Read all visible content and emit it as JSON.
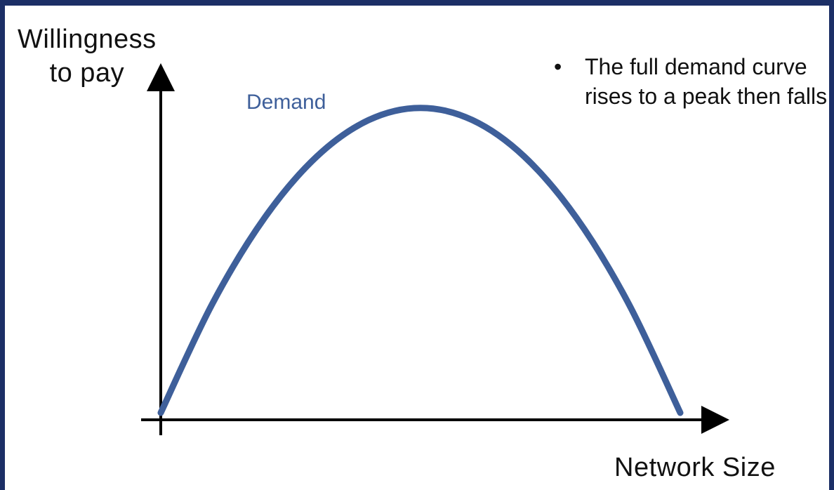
{
  "colors": {
    "frame": "#1c2f66",
    "curve": "#3e5f9a",
    "axis": "#000000",
    "text": "#111111"
  },
  "chart_data": {
    "type": "line",
    "title": "",
    "xlabel": "Network Size",
    "ylabel_lines": [
      "Willingness",
      "to pay"
    ],
    "xlim": [
      0,
      1
    ],
    "ylim": [
      0,
      1.05
    ],
    "grid": false,
    "axis_ticks": false,
    "series": [
      {
        "name": "Demand",
        "x": [
          0,
          0.1,
          0.2,
          0.3,
          0.4,
          0.5,
          0.6,
          0.7,
          0.8,
          0.9,
          1.0
        ],
        "y": [
          0,
          0.36,
          0.64,
          0.84,
          0.96,
          1.0,
          0.96,
          0.84,
          0.64,
          0.36,
          0
        ]
      }
    ]
  },
  "bullets": [
    "The full demand curve rises to a peak then falls"
  ],
  "bullet_symbol": "•"
}
